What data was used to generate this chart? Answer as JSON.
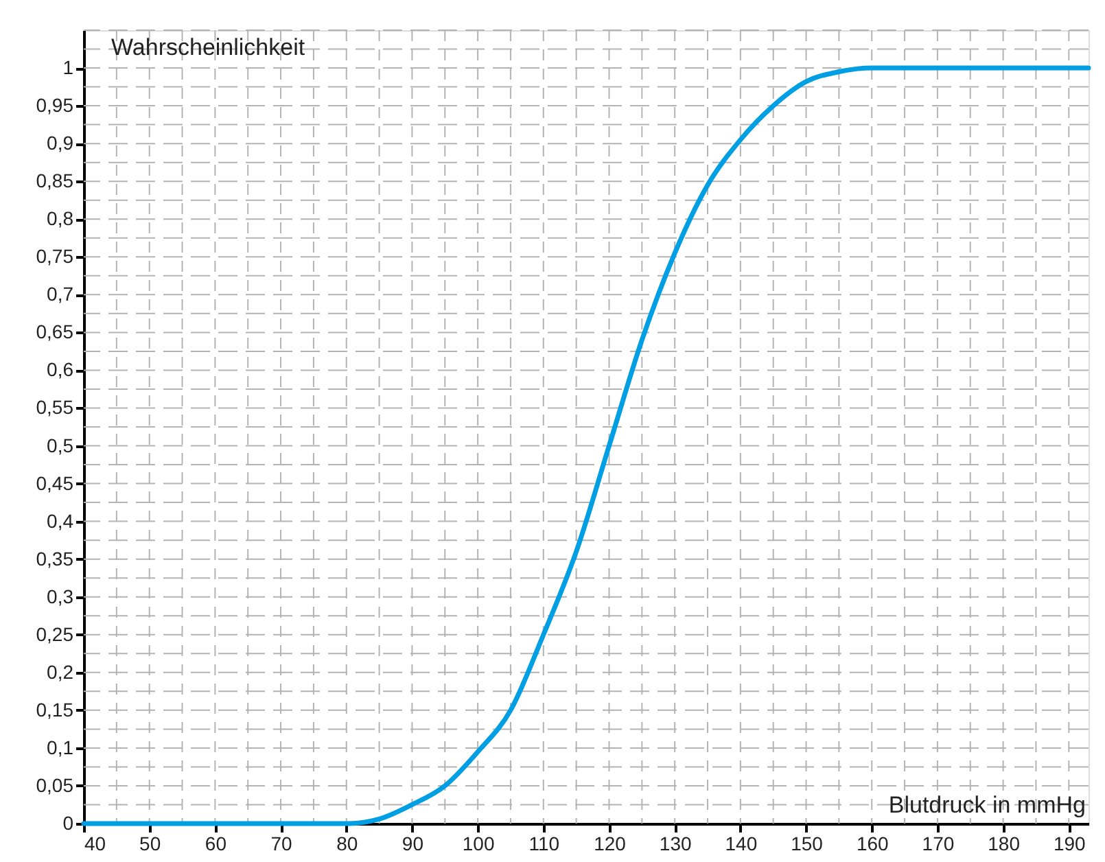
{
  "chart_data": {
    "type": "line",
    "xlabel": "Blutdruck in mmHg",
    "ylabel": "Wahrscheinlichkeit",
    "x": [
      40,
      50,
      60,
      70,
      80,
      85,
      90,
      95,
      100,
      105,
      110,
      115,
      120,
      125,
      130,
      135,
      140,
      145,
      150,
      155,
      160,
      170,
      180,
      193
    ],
    "series": [
      {
        "color": "#009fe3",
        "values": [
          0,
          0,
          0,
          0,
          0,
          0.006,
          0.025,
          0.05,
          0.095,
          0.15,
          0.25,
          0.36,
          0.5,
          0.64,
          0.755,
          0.845,
          0.905,
          0.95,
          0.982,
          0.995,
          1,
          1,
          1,
          1
        ]
      }
    ],
    "xlim": [
      40,
      193
    ],
    "ylim": [
      0,
      1.05
    ],
    "xticks": [
      40,
      50,
      60,
      70,
      80,
      90,
      100,
      110,
      120,
      130,
      140,
      150,
      160,
      170,
      180,
      190
    ],
    "yticks": [
      0,
      {
        "value": 0.05,
        "label": "0,05"
      },
      {
        "value": 0.1,
        "label": "0,1"
      },
      {
        "value": 0.15,
        "label": "0,15"
      },
      {
        "value": 0.2,
        "label": "0,2"
      },
      {
        "value": 0.25,
        "label": "0,25"
      },
      {
        "value": 0.3,
        "label": "0,3"
      },
      {
        "value": 0.35,
        "label": "0,35"
      },
      {
        "value": 0.4,
        "label": "0,4"
      },
      {
        "value": 0.45,
        "label": "0,45"
      },
      {
        "value": 0.5,
        "label": "0,5"
      },
      {
        "value": 0.55,
        "label": "0,55"
      },
      {
        "value": 0.6,
        "label": "0,6"
      },
      {
        "value": 0.65,
        "label": "0,65"
      },
      {
        "value": 0.7,
        "label": "0,7"
      },
      {
        "value": 0.75,
        "label": "0,75"
      },
      {
        "value": 0.8,
        "label": "0,8"
      },
      {
        "value": 0.85,
        "label": "0,85"
      },
      {
        "value": 0.9,
        "label": "0,9"
      },
      {
        "value": 0.95,
        "label": "0,95"
      },
      1
    ],
    "grid": true,
    "legend": false,
    "marker": "none",
    "line_style": "solid"
  }
}
